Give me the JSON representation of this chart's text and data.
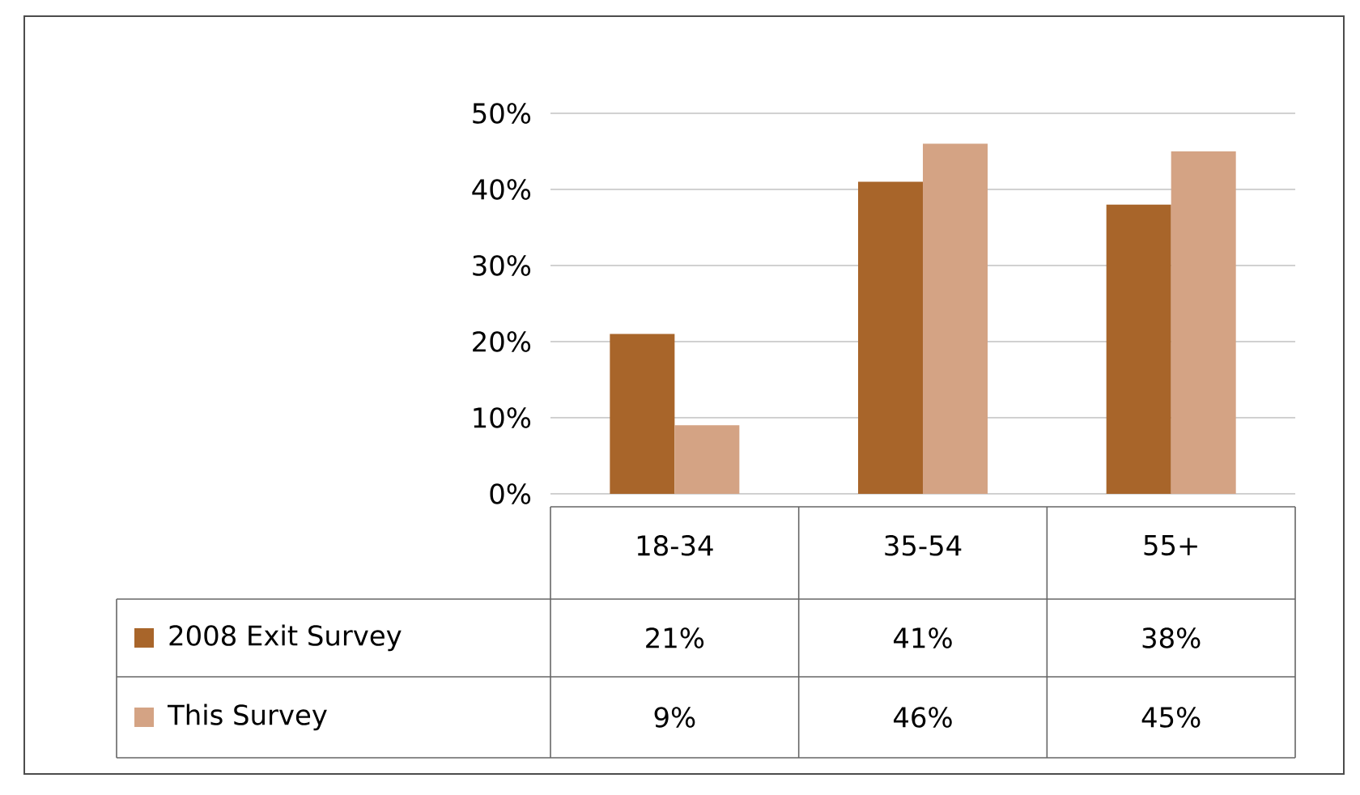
{
  "chart_data": {
    "type": "bar",
    "categories": [
      "18-34",
      "35-54",
      "55+"
    ],
    "series": [
      {
        "name": "2008 Exit Survey",
        "color": "#a8652a",
        "values": [
          21,
          41,
          38
        ],
        "value_labels": [
          "21%",
          "41%",
          "38%"
        ]
      },
      {
        "name": "This Survey",
        "color": "#d4a384",
        "values": [
          9,
          46,
          45
        ],
        "value_labels": [
          "9%",
          "46%",
          "45%"
        ]
      }
    ],
    "ylim": [
      0,
      50
    ],
    "yticks": [
      {
        "value": 0,
        "label": "0%"
      },
      {
        "value": 10,
        "label": "10%"
      },
      {
        "value": 20,
        "label": "20%"
      },
      {
        "value": 30,
        "label": "30%"
      },
      {
        "value": 40,
        "label": "40%"
      },
      {
        "value": 50,
        "label": "50%"
      }
    ],
    "grid": "y",
    "legend": "bottom"
  }
}
